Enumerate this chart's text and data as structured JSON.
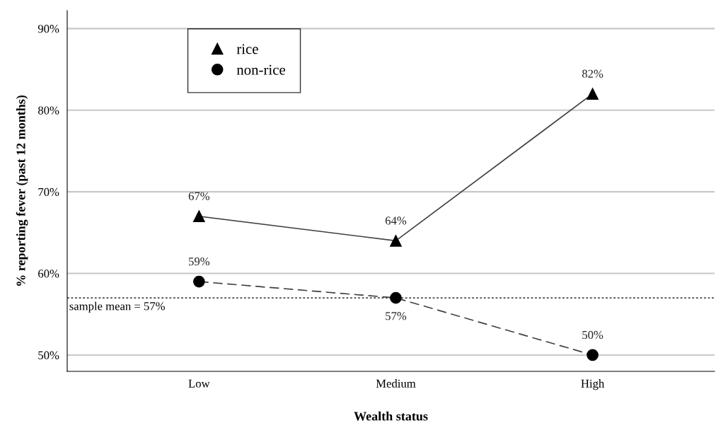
{
  "chart_data": {
    "type": "line",
    "xlabel": "Wealth status",
    "ylabel": "% reporting fever (past 12 months)",
    "categories": [
      "Low",
      "Medium",
      "High"
    ],
    "series": [
      {
        "name": "rice",
        "color": "#000000",
        "values": [
          67,
          64,
          82
        ],
        "value_labels": [
          "67%",
          "64%",
          "82%"
        ],
        "marker": "triangle",
        "line_style": "solid"
      },
      {
        "name": "non-rice",
        "color": "#000000",
        "values": [
          59,
          57,
          50
        ],
        "value_labels": [
          "59%",
          "57%",
          "50%"
        ],
        "marker": "circle",
        "line_style": "dashed"
      }
    ],
    "ylim": [
      48,
      92.2
    ],
    "yticks": [
      {
        "value": 50,
        "label": "50%"
      },
      {
        "value": 60,
        "label": "60%"
      },
      {
        "value": 70,
        "label": "70%"
      },
      {
        "value": 80,
        "label": "80%"
      },
      {
        "value": 90,
        "label": "90%"
      }
    ],
    "ref_lines": [
      {
        "axis": "y",
        "value": 57,
        "label": "sample mean = 57%",
        "color": "#000000",
        "line_style": "dotted"
      }
    ],
    "grid": "y",
    "legend": "top left"
  }
}
